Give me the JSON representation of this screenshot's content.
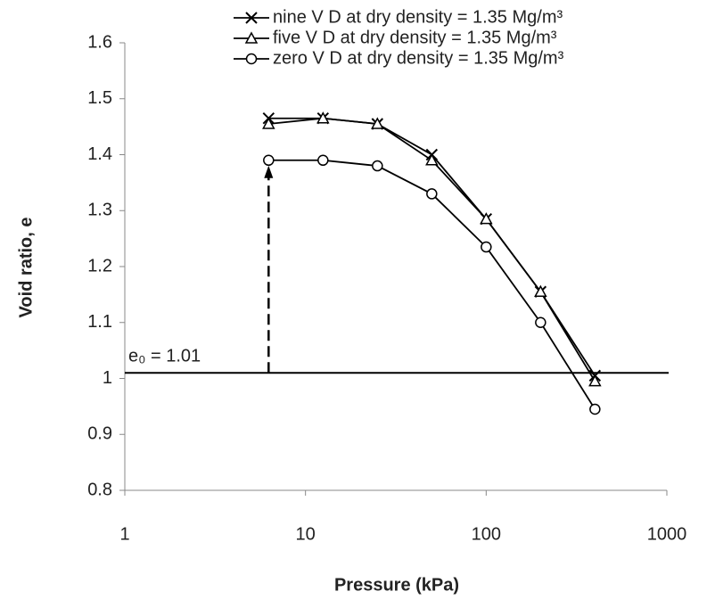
{
  "chart_data": {
    "type": "line",
    "x_label": "Pressure (kPa)",
    "y_label": "Void ratio, e",
    "x_scale": "log",
    "xlim": [
      1,
      1000
    ],
    "xticks": [
      1,
      10,
      100,
      1000
    ],
    "ylim": [
      0.8,
      1.6
    ],
    "yticks": [
      0.8,
      0.9,
      1,
      1.1,
      1.2,
      1.3,
      1.4,
      1.5,
      1.6
    ],
    "x": [
      6.25,
      12.5,
      25,
      50,
      100,
      200,
      400
    ],
    "series": [
      {
        "name": "nine V D at dry density = 1.35 Mg/m³",
        "color": "#000000",
        "marker": "x",
        "values": [
          1.465,
          1.465,
          1.455,
          1.4,
          1.285,
          1.155,
          1.005
        ]
      },
      {
        "name": "five V D at dry density = 1.35 Mg/m³",
        "color": "#000000",
        "marker": "triangle",
        "values": [
          1.455,
          1.465,
          1.455,
          1.39,
          1.285,
          1.155,
          0.995
        ]
      },
      {
        "name": "zero V D at dry density = 1.35 Mg/m³",
        "color": "#000000",
        "marker": "circle",
        "values": [
          1.39,
          1.39,
          1.38,
          1.33,
          1.235,
          1.1,
          0.945
        ]
      }
    ],
    "hline": 1.01,
    "annotation": "e₀ = 1.01"
  }
}
